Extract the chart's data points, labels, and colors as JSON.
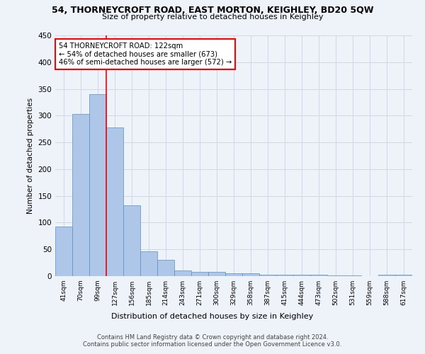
{
  "title_line1": "54, THORNEYCROFT ROAD, EAST MORTON, KEIGHLEY, BD20 5QW",
  "title_line2": "Size of property relative to detached houses in Keighley",
  "xlabel": "Distribution of detached houses by size in Keighley",
  "ylabel": "Number of detached properties",
  "footer_line1": "Contains HM Land Registry data © Crown copyright and database right 2024.",
  "footer_line2": "Contains public sector information licensed under the Open Government Licence v3.0.",
  "bar_labels": [
    "41sqm",
    "70sqm",
    "99sqm",
    "127sqm",
    "156sqm",
    "185sqm",
    "214sqm",
    "243sqm",
    "271sqm",
    "300sqm",
    "329sqm",
    "358sqm",
    "387sqm",
    "415sqm",
    "444sqm",
    "473sqm",
    "502sqm",
    "531sqm",
    "559sqm",
    "588sqm",
    "617sqm"
  ],
  "bar_values": [
    93,
    303,
    340,
    278,
    132,
    46,
    31,
    10,
    8,
    8,
    5,
    5,
    3,
    3,
    2,
    2,
    1,
    1,
    0,
    3,
    2
  ],
  "bar_color": "#aec6e8",
  "bar_edgecolor": "#5a8fc2",
  "annotation_text": "54 THORNEYCROFT ROAD: 122sqm\n← 54% of detached houses are smaller (673)\n46% of semi-detached houses are larger (572) →",
  "annotation_box_color": "white",
  "annotation_box_edgecolor": "red",
  "vline_x": 2.5,
  "vline_color": "red",
  "ylim": [
    0,
    450
  ],
  "yticks": [
    0,
    50,
    100,
    150,
    200,
    250,
    300,
    350,
    400,
    450
  ],
  "grid_color": "#d0d8e8",
  "background_color": "#eef2f9"
}
